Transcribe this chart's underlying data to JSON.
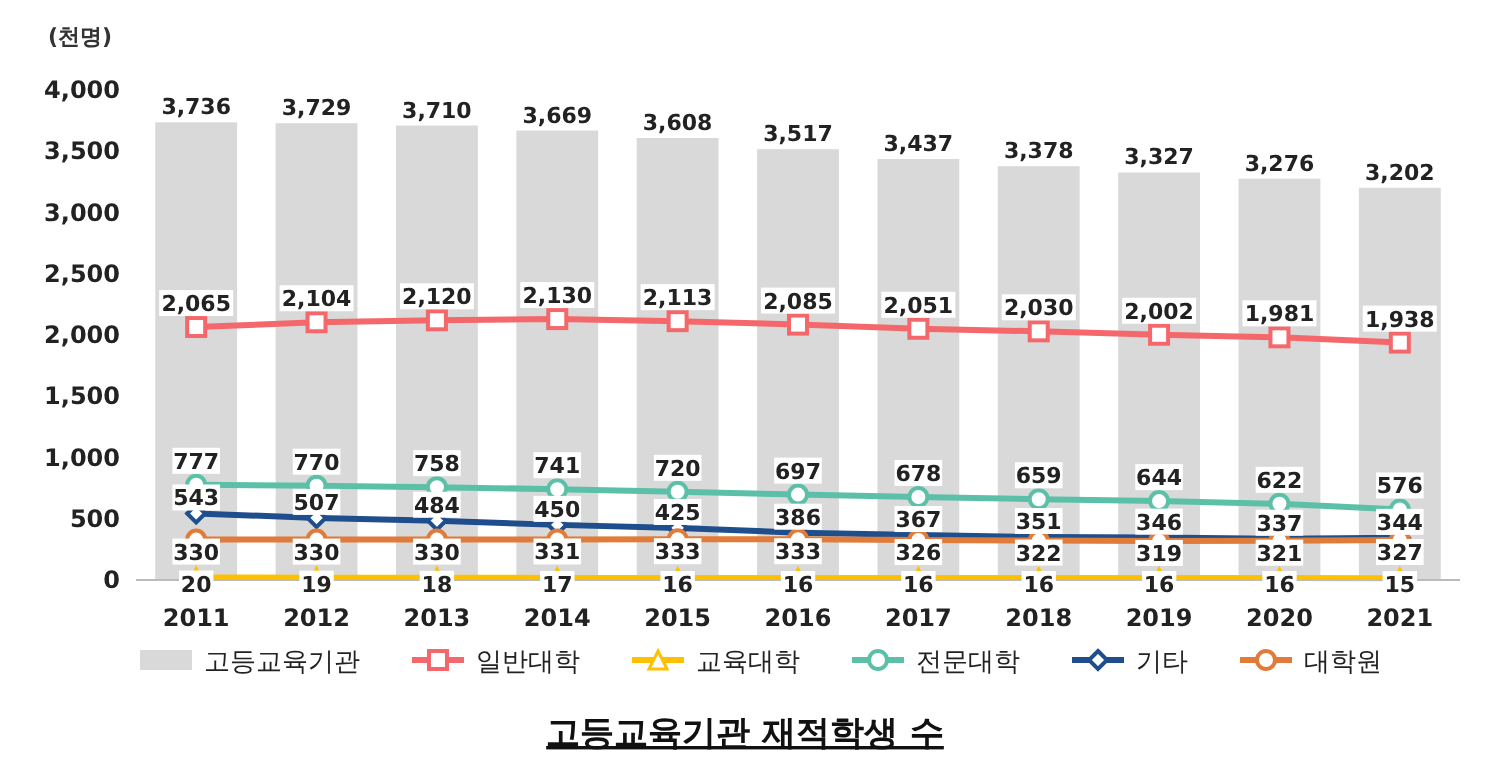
{
  "chart_data": {
    "type": "bar",
    "title": "고등교육기관 재적학생 수",
    "ylabel": "(천명)",
    "categories": [
      "2011",
      "2012",
      "2013",
      "2014",
      "2015",
      "2016",
      "2017",
      "2018",
      "2019",
      "2020",
      "2021"
    ],
    "series": [
      {
        "name": "고등교육기관",
        "color": "#d9d9d9",
        "values": [
          3736,
          3729,
          3710,
          3669,
          3608,
          3517,
          3437,
          3378,
          3327,
          3276,
          3202
        ],
        "value_labels": [
          "3,736",
          "3,729",
          "3,710",
          "3,669",
          "3,608",
          "3,517",
          "3,437",
          "3,378",
          "3,327",
          "3,276",
          "3,202"
        ]
      },
      {
        "name": "일반대학",
        "type": "line",
        "color": "#f4676a",
        "marker": "square",
        "values": [
          2065,
          2104,
          2120,
          2130,
          2113,
          2085,
          2051,
          2030,
          2002,
          1981,
          1938
        ],
        "value_labels": [
          "2,065",
          "2,104",
          "2,120",
          "2,130",
          "2,113",
          "2,085",
          "2,051",
          "2,030",
          "2,002",
          "1,981",
          "1,938"
        ]
      },
      {
        "name": "교육대학",
        "type": "line",
        "color": "#ffc000",
        "marker": "triangle",
        "values": [
          20,
          19,
          18,
          17,
          16,
          16,
          16,
          16,
          16,
          16,
          15
        ],
        "value_labels": [
          "20",
          "19",
          "18",
          "17",
          "16",
          "16",
          "16",
          "16",
          "16",
          "16",
          "15"
        ]
      },
      {
        "name": "전문대학",
        "type": "line",
        "color": "#5cc0a8",
        "marker": "circle",
        "values": [
          777,
          770,
          758,
          741,
          720,
          697,
          678,
          659,
          644,
          622,
          576
        ],
        "value_labels": [
          "777",
          "770",
          "758",
          "741",
          "720",
          "697",
          "678",
          "659",
          "644",
          "622",
          "576"
        ]
      },
      {
        "name": "기타",
        "type": "line",
        "color": "#1f4e8c",
        "marker": "diamond",
        "values": [
          543,
          507,
          484,
          450,
          425,
          386,
          367,
          351,
          346,
          337,
          344
        ],
        "value_labels": [
          "543",
          "507",
          "484",
          "450",
          "425",
          "386",
          "367",
          "351",
          "346",
          "337",
          "344"
        ]
      },
      {
        "name": "대학원",
        "type": "line",
        "color": "#e07b39",
        "marker": "circle",
        "values": [
          330,
          330,
          330,
          331,
          333,
          333,
          326,
          322,
          319,
          321,
          327
        ],
        "value_labels": [
          "330",
          "330",
          "330",
          "331",
          "333",
          "333",
          "326",
          "322",
          "319",
          "321",
          "327"
        ]
      }
    ],
    "ylim": [
      0,
      4000
    ],
    "yticks": [
      {
        "value": 0,
        "label": "0"
      },
      {
        "value": 500,
        "label": "500"
      },
      {
        "value": 1000,
        "label": "1,000"
      },
      {
        "value": 1500,
        "label": "1,500"
      },
      {
        "value": 2000,
        "label": "2,000"
      },
      {
        "value": 2500,
        "label": "2,500"
      },
      {
        "value": 3000,
        "label": "3,000"
      },
      {
        "value": 3500,
        "label": "3,500"
      },
      {
        "value": 4000,
        "label": "4,000"
      }
    ],
    "legend": "bottom"
  }
}
